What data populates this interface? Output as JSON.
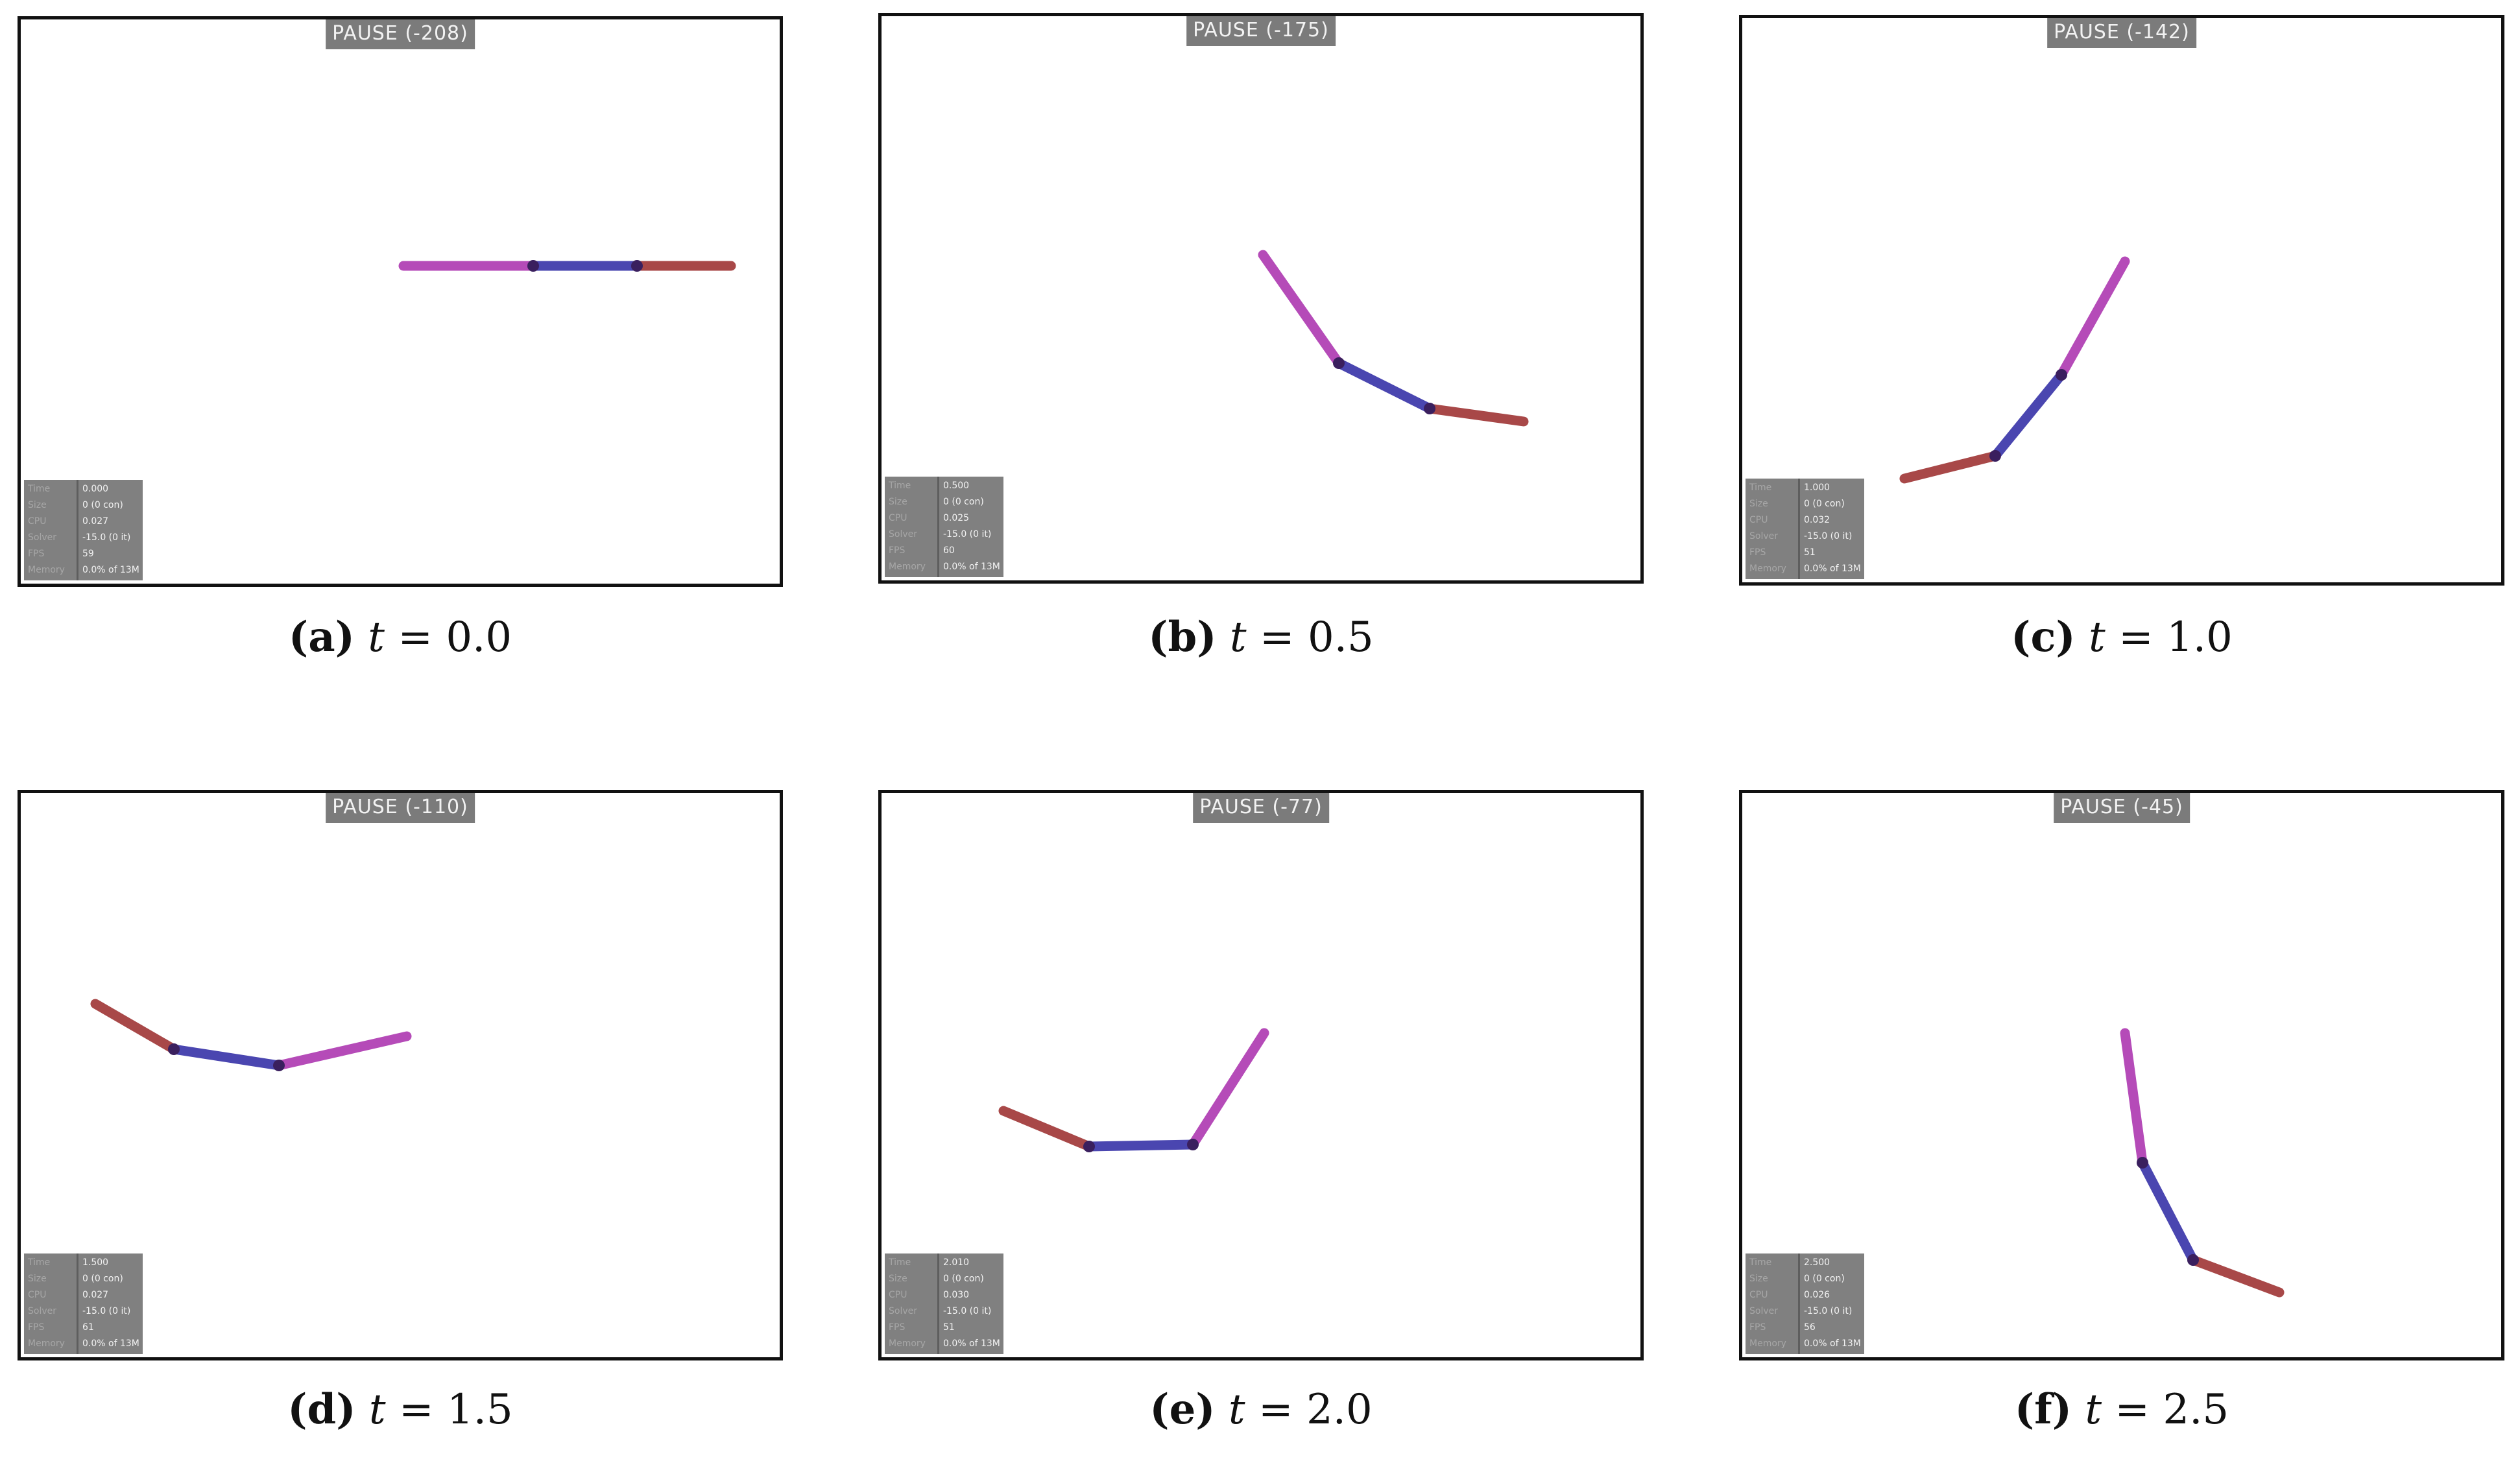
{
  "colors": {
    "link1": "#b54bb8",
    "link2": "#4a46b0",
    "link3": "#a84848",
    "joint": "#3a1f5e",
    "hud_bg": "#7b7b7b"
  },
  "stat_labels": [
    "Time",
    "Size",
    "CPU",
    "Solver",
    "FPS",
    "Memory"
  ],
  "panels": [
    {
      "tag": "a",
      "var": "t",
      "op": " = ",
      "value": "0.0",
      "pause": "PAUSE (-208)",
      "stats": [
        "0.000",
        "0 (0 con)",
        "0.027",
        "-15.0 (0 it)",
        "59",
        "0.0% of 13M"
      ],
      "joints": [
        [
          590,
          380
        ],
        [
          790,
          380
        ],
        [
          950,
          380
        ],
        [
          1095,
          380
        ]
      ]
    },
    {
      "tag": "b",
      "var": "t",
      "op": " = ",
      "value": "0.5",
      "pause": "PAUSE (-175)",
      "stats": [
        "0.500",
        "0 (0 con)",
        "0.025",
        "-15.0 (0 it)",
        "60",
        "0.0% of 13M"
      ],
      "joints": [
        [
          588,
          368
        ],
        [
          705,
          535
        ],
        [
          845,
          605
        ],
        [
          990,
          625
        ]
      ]
    },
    {
      "tag": "c",
      "var": "t",
      "op": " = ",
      "value": "1.0",
      "pause": "PAUSE (-142)",
      "stats": [
        "1.000",
        "0 (0 con)",
        "0.032",
        "-15.0 (0 it)",
        "51",
        "0.0% of 13M"
      ],
      "joints": [
        [
          590,
          375
        ],
        [
          492,
          550
        ],
        [
          390,
          675
        ],
        [
          250,
          710
        ]
      ]
    },
    {
      "tag": "d",
      "var": "t",
      "op": " = ",
      "value": "1.5",
      "pause": "PAUSE (-110)",
      "stats": [
        "1.500",
        "0 (0 con)",
        "0.027",
        "-15.0 (0 it)",
        "61",
        "0.0% of 13M"
      ],
      "joints": [
        [
          595,
          375
        ],
        [
          398,
          420
        ],
        [
          236,
          395
        ],
        [
          115,
          325
        ]
      ]
    },
    {
      "tag": "e",
      "var": "t",
      "op": " = ",
      "value": "2.0",
      "pause": "PAUSE (-77)",
      "stats": [
        "2.010",
        "0 (0 con)",
        "0.030",
        "-15.0 (0 it)",
        "51",
        "0.0% of 13M"
      ],
      "joints": [
        [
          590,
          370
        ],
        [
          480,
          542
        ],
        [
          320,
          545
        ],
        [
          188,
          490
        ]
      ]
    },
    {
      "tag": "f",
      "var": "t",
      "op": " = ",
      "value": "2.5",
      "pause": "PAUSE (-45)",
      "stats": [
        "2.500",
        "0 (0 con)",
        "0.026",
        "-15.0 (0 it)",
        "56",
        "0.0% of 13M"
      ],
      "joints": [
        [
          590,
          370
        ],
        [
          617,
          570
        ],
        [
          695,
          720
        ],
        [
          828,
          770
        ]
      ]
    }
  ]
}
